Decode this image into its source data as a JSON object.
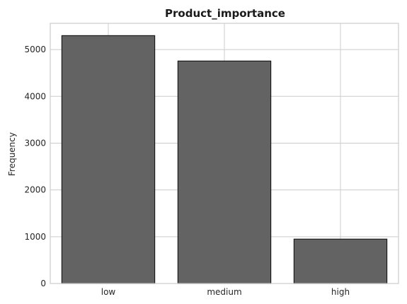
{
  "chart_data": {
    "type": "bar",
    "title": "Product_importance",
    "xlabel": "",
    "ylabel": "Frequency",
    "categories": [
      "low",
      "medium",
      "high"
    ],
    "values": [
      5297,
      4754,
      948
    ],
    "ylim": [
      0,
      5560
    ],
    "yticks": [
      0,
      1000,
      2000,
      3000,
      4000,
      5000
    ],
    "grid": true,
    "bar_color": "#636363",
    "bar_edge_color": "#1a1a1a",
    "grid_color": "#cccccc",
    "text_color": "#262626"
  }
}
